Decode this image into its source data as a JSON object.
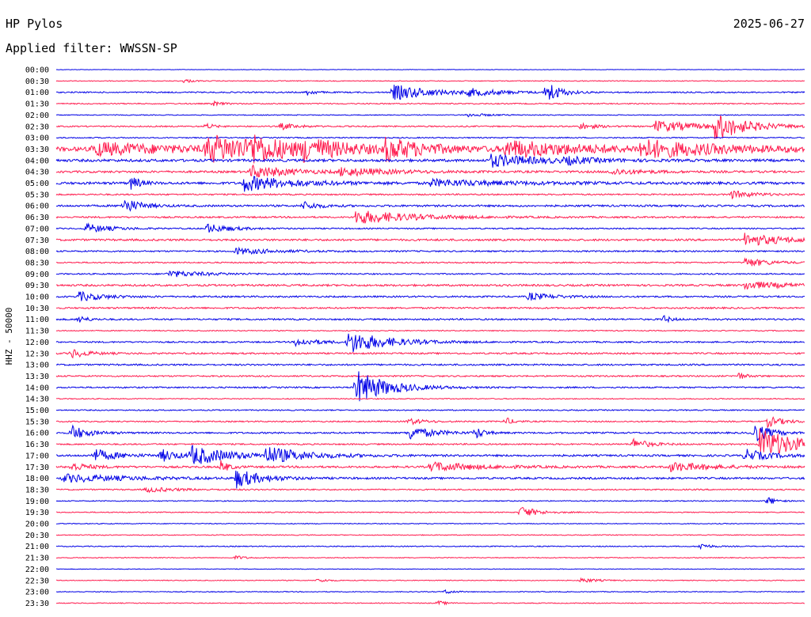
{
  "header": {
    "station": "HP Pylos",
    "date": "2025-06-27",
    "filter_label": "Applied filter: WWSSN-SP"
  },
  "chart_data": {
    "type": "line",
    "chart_kind": "helicorder",
    "ylabel": "HHZ - 50000",
    "row_labels": [
      "00:00",
      "00:30",
      "01:00",
      "01:30",
      "02:00",
      "02:30",
      "03:00",
      "03:30",
      "04:00",
      "04:30",
      "05:00",
      "05:30",
      "06:00",
      "06:30",
      "07:00",
      "07:30",
      "08:00",
      "08:30",
      "09:00",
      "09:30",
      "10:00",
      "10:30",
      "11:00",
      "11:30",
      "12:00",
      "12:30",
      "13:00",
      "13:30",
      "14:00",
      "14:30",
      "15:00",
      "15:30",
      "16:00",
      "16:30",
      "17:00",
      "17:30",
      "18:00",
      "18:30",
      "19:00",
      "19:30",
      "20:00",
      "20:30",
      "21:00",
      "21:30",
      "22:00",
      "22:30",
      "23:00",
      "23:30"
    ],
    "row_minutes": 30,
    "trace_colors": [
      "#0000e6",
      "#ff1a4d"
    ],
    "row_noise": [
      0.3,
      0.5,
      0.8,
      0.7,
      0.5,
      0.8,
      0.7,
      2.6,
      1.6,
      1.3,
      1.5,
      0.9,
      1.2,
      1.0,
      0.8,
      1.2,
      0.9,
      0.8,
      0.8,
      1.2,
      1.0,
      1.0,
      1.0,
      0.6,
      0.9,
      1.0,
      1.0,
      0.9,
      0.9,
      0.6,
      0.7,
      0.8,
      1.0,
      0.9,
      1.2,
      1.2,
      1.2,
      0.8,
      0.6,
      0.6,
      0.5,
      0.5,
      0.6,
      0.5,
      0.4,
      0.5,
      0.5,
      0.5
    ],
    "events": [
      {
        "row": 1,
        "x": 0.17,
        "amp": 3,
        "dur": 0.01
      },
      {
        "row": 2,
        "x": 0.335,
        "amp": 4,
        "dur": 0.01
      },
      {
        "row": 2,
        "x": 0.45,
        "amp": 10,
        "dur": 0.05
      },
      {
        "row": 2,
        "x": 0.55,
        "amp": 4,
        "dur": 0.04
      },
      {
        "row": 2,
        "x": 0.655,
        "amp": 16,
        "dur": 0.015
      },
      {
        "row": 3,
        "x": 0.21,
        "amp": 3,
        "dur": 0.01
      },
      {
        "row": 4,
        "x": 0.55,
        "amp": 2,
        "dur": 0.03
      },
      {
        "row": 5,
        "x": 0.2,
        "amp": 4,
        "dur": 0.01
      },
      {
        "row": 5,
        "x": 0.3,
        "amp": 4,
        "dur": 0.02
      },
      {
        "row": 5,
        "x": 0.7,
        "amp": 4,
        "dur": 0.02
      },
      {
        "row": 5,
        "x": 0.8,
        "amp": 7,
        "dur": 0.06
      },
      {
        "row": 5,
        "x": 0.88,
        "amp": 16,
        "dur": 0.04
      },
      {
        "row": 7,
        "x": 0.05,
        "amp": 8,
        "dur": 0.1
      },
      {
        "row": 7,
        "x": 0.2,
        "amp": 16,
        "dur": 0.1
      },
      {
        "row": 7,
        "x": 0.26,
        "amp": 12,
        "dur": 0.03
      },
      {
        "row": 7,
        "x": 0.33,
        "amp": 10,
        "dur": 0.05
      },
      {
        "row": 7,
        "x": 0.44,
        "amp": 12,
        "dur": 0.05
      },
      {
        "row": 7,
        "x": 0.6,
        "amp": 10,
        "dur": 0.1
      },
      {
        "row": 7,
        "x": 0.78,
        "amp": 10,
        "dur": 0.1
      },
      {
        "row": 8,
        "x": 0.58,
        "amp": 8,
        "dur": 0.06
      },
      {
        "row": 8,
        "x": 0.68,
        "amp": 4,
        "dur": 0.03
      },
      {
        "row": 9,
        "x": 0.26,
        "amp": 8,
        "dur": 0.05
      },
      {
        "row": 9,
        "x": 0.38,
        "amp": 5,
        "dur": 0.06
      },
      {
        "row": 9,
        "x": 0.74,
        "amp": 4,
        "dur": 0.04
      },
      {
        "row": 10,
        "x": 0.1,
        "amp": 10,
        "dur": 0.01
      },
      {
        "row": 10,
        "x": 0.25,
        "amp": 10,
        "dur": 0.06
      },
      {
        "row": 10,
        "x": 0.5,
        "amp": 4,
        "dur": 0.1
      },
      {
        "row": 11,
        "x": 0.9,
        "amp": 5,
        "dur": 0.03
      },
      {
        "row": 12,
        "x": 0.09,
        "amp": 10,
        "dur": 0.02
      },
      {
        "row": 12,
        "x": 0.33,
        "amp": 5,
        "dur": 0.02
      },
      {
        "row": 13,
        "x": 0.4,
        "amp": 9,
        "dur": 0.07
      },
      {
        "row": 14,
        "x": 0.04,
        "amp": 6,
        "dur": 0.03
      },
      {
        "row": 14,
        "x": 0.2,
        "amp": 6,
        "dur": 0.03
      },
      {
        "row": 15,
        "x": 0.92,
        "amp": 8,
        "dur": 0.05
      },
      {
        "row": 16,
        "x": 0.24,
        "amp": 4,
        "dur": 0.05
      },
      {
        "row": 17,
        "x": 0.92,
        "amp": 6,
        "dur": 0.03
      },
      {
        "row": 18,
        "x": 0.15,
        "amp": 4,
        "dur": 0.05
      },
      {
        "row": 19,
        "x": 0.92,
        "amp": 5,
        "dur": 0.05
      },
      {
        "row": 20,
        "x": 0.03,
        "amp": 6,
        "dur": 0.03
      },
      {
        "row": 20,
        "x": 0.63,
        "amp": 5,
        "dur": 0.03
      },
      {
        "row": 22,
        "x": 0.03,
        "amp": 5,
        "dur": 0.01
      },
      {
        "row": 22,
        "x": 0.81,
        "amp": 5,
        "dur": 0.01
      },
      {
        "row": 24,
        "x": 0.32,
        "amp": 5,
        "dur": 0.03
      },
      {
        "row": 24,
        "x": 0.39,
        "amp": 14,
        "dur": 0.05
      },
      {
        "row": 25,
        "x": 0.02,
        "amp": 6,
        "dur": 0.02
      },
      {
        "row": 27,
        "x": 0.91,
        "amp": 5,
        "dur": 0.01
      },
      {
        "row": 28,
        "x": 0.4,
        "amp": 22,
        "dur": 0.04
      },
      {
        "row": 31,
        "x": 0.47,
        "amp": 4,
        "dur": 0.02
      },
      {
        "row": 31,
        "x": 0.6,
        "amp": 5,
        "dur": 0.01
      },
      {
        "row": 31,
        "x": 0.95,
        "amp": 7,
        "dur": 0.02
      },
      {
        "row": 32,
        "x": 0.02,
        "amp": 10,
        "dur": 0.02
      },
      {
        "row": 32,
        "x": 0.47,
        "amp": 9,
        "dur": 0.03
      },
      {
        "row": 32,
        "x": 0.56,
        "amp": 8,
        "dur": 0.01
      },
      {
        "row": 32,
        "x": 0.93,
        "amp": 14,
        "dur": 0.02
      },
      {
        "row": 33,
        "x": 0.77,
        "amp": 7,
        "dur": 0.02
      },
      {
        "row": 33,
        "x": 0.94,
        "amp": 20,
        "dur": 0.05
      },
      {
        "row": 34,
        "x": 0.05,
        "amp": 8,
        "dur": 0.03
      },
      {
        "row": 34,
        "x": 0.14,
        "amp": 8,
        "dur": 0.02
      },
      {
        "row": 34,
        "x": 0.18,
        "amp": 12,
        "dur": 0.05
      },
      {
        "row": 34,
        "x": 0.28,
        "amp": 10,
        "dur": 0.05
      },
      {
        "row": 34,
        "x": 0.92,
        "amp": 8,
        "dur": 0.03
      },
      {
        "row": 35,
        "x": 0.02,
        "amp": 6,
        "dur": 0.02
      },
      {
        "row": 35,
        "x": 0.22,
        "amp": 8,
        "dur": 0.01
      },
      {
        "row": 35,
        "x": 0.5,
        "amp": 6,
        "dur": 0.06
      },
      {
        "row": 35,
        "x": 0.82,
        "amp": 6,
        "dur": 0.05
      },
      {
        "row": 36,
        "x": 0.01,
        "amp": 5,
        "dur": 0.08
      },
      {
        "row": 36,
        "x": 0.24,
        "amp": 12,
        "dur": 0.03
      },
      {
        "row": 37,
        "x": 0.12,
        "amp": 3,
        "dur": 0.04
      },
      {
        "row": 38,
        "x": 0.95,
        "amp": 6,
        "dur": 0.01
      },
      {
        "row": 39,
        "x": 0.62,
        "amp": 8,
        "dur": 0.02
      },
      {
        "row": 42,
        "x": 0.86,
        "amp": 5,
        "dur": 0.01
      },
      {
        "row": 43,
        "x": 0.24,
        "amp": 3,
        "dur": 0.01
      },
      {
        "row": 45,
        "x": 0.35,
        "amp": 3,
        "dur": 0.01
      },
      {
        "row": 45,
        "x": 0.7,
        "amp": 3,
        "dur": 0.02
      },
      {
        "row": 46,
        "x": 0.52,
        "amp": 3,
        "dur": 0.01
      },
      {
        "row": 47,
        "x": 0.51,
        "amp": 3,
        "dur": 0.01
      }
    ]
  }
}
